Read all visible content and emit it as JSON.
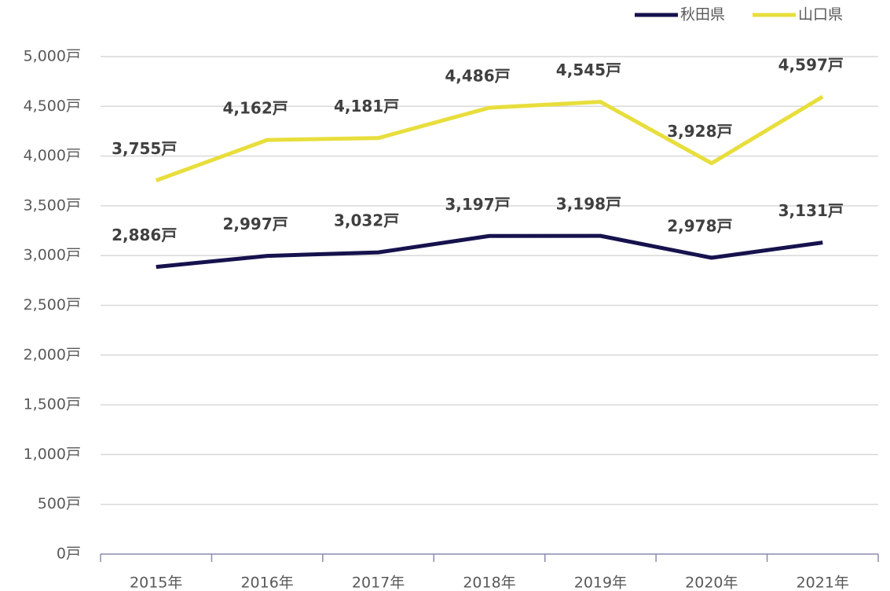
{
  "chart_data": {
    "type": "line",
    "categories": [
      "2015年",
      "2016年",
      "2017年",
      "2018年",
      "2019年",
      "2020年",
      "2021年"
    ],
    "series": [
      {
        "name": "秋田県",
        "color": "#16124d",
        "values": [
          2886,
          2997,
          3032,
          3197,
          3198,
          2978,
          3131
        ],
        "value_labels": [
          "2,886戸",
          "2,997戸",
          "3,032戸",
          "3,197戸",
          "3,198戸",
          "2,978戸",
          "3,131戸"
        ]
      },
      {
        "name": "山口県",
        "color": "#e8de3c",
        "values": [
          3755,
          4162,
          4181,
          4486,
          4545,
          3928,
          4597
        ],
        "value_labels": [
          "3,755戸",
          "4,162戸",
          "4,181戸",
          "4,486戸",
          "4,545戸",
          "3,928戸",
          "4,597戸"
        ]
      }
    ],
    "ylim": [
      0,
      5000
    ],
    "yticks": [
      {
        "value": 0,
        "label": "0戸"
      },
      {
        "value": 500,
        "label": "500戸"
      },
      {
        "value": 1000,
        "label": "1,000戸"
      },
      {
        "value": 1500,
        "label": "1,500戸"
      },
      {
        "value": 2000,
        "label": "2,000戸"
      },
      {
        "value": 2500,
        "label": "2,500戸"
      },
      {
        "value": 3000,
        "label": "3,000戸"
      },
      {
        "value": 3500,
        "label": "3,500戸"
      },
      {
        "value": 4000,
        "label": "4,000戸"
      },
      {
        "value": 4500,
        "label": "4,500戸"
      },
      {
        "value": 5000,
        "label": "5,000戸"
      }
    ],
    "grid": true,
    "legend": "top-right"
  }
}
